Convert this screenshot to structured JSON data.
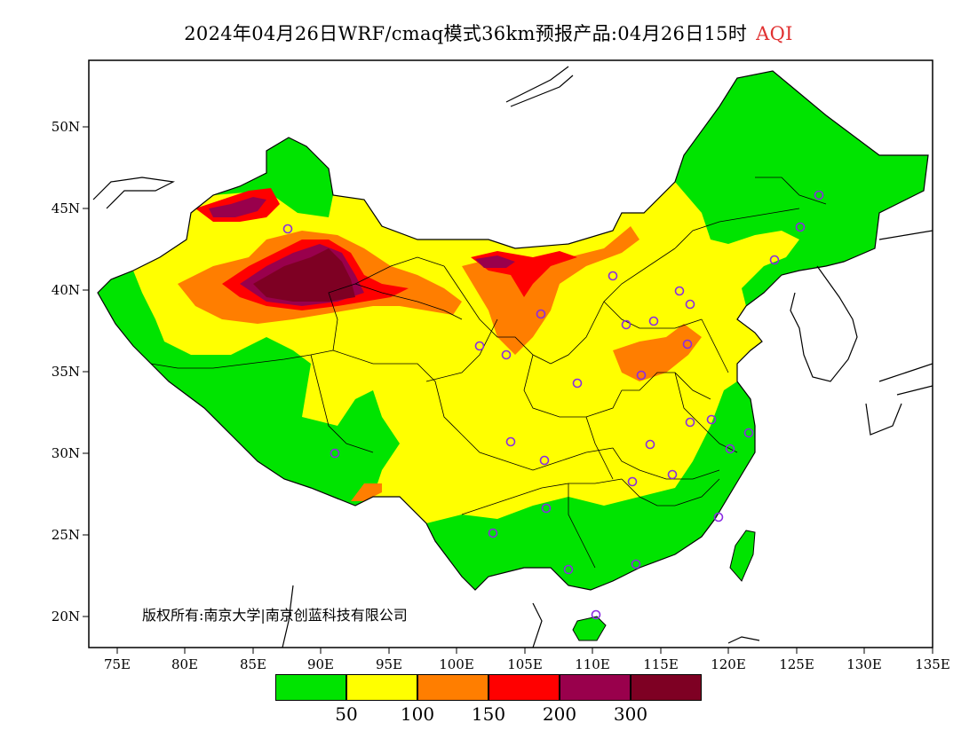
{
  "title": {
    "main": "2024年04月26日WRF/cmaq模式36km预报产品:04月26日15时",
    "variable": "AQI"
  },
  "map": {
    "lat_labels": [
      "50N",
      "45N",
      "40N",
      "35N",
      "30N",
      "25N",
      "20N"
    ],
    "lon_labels": [
      "75E",
      "80E",
      "85E",
      "90E",
      "95E",
      "100E",
      "105E",
      "110E",
      "115E",
      "120E",
      "125E",
      "130E",
      "135E"
    ],
    "lon_range": [
      73,
      135
    ],
    "lat_range": [
      18,
      54
    ],
    "station_marker": "purple-circle",
    "station_count": 29
  },
  "copyright": "版权所有:南京大学|南京创蓝科技有限公司",
  "colorbar": {
    "colors": [
      "#00e400",
      "#ffff00",
      "#ff7e00",
      "#ff0000",
      "#99004c",
      "#7e0023"
    ],
    "tick_labels": [
      "50",
      "100",
      "150",
      "200",
      "300"
    ]
  }
}
